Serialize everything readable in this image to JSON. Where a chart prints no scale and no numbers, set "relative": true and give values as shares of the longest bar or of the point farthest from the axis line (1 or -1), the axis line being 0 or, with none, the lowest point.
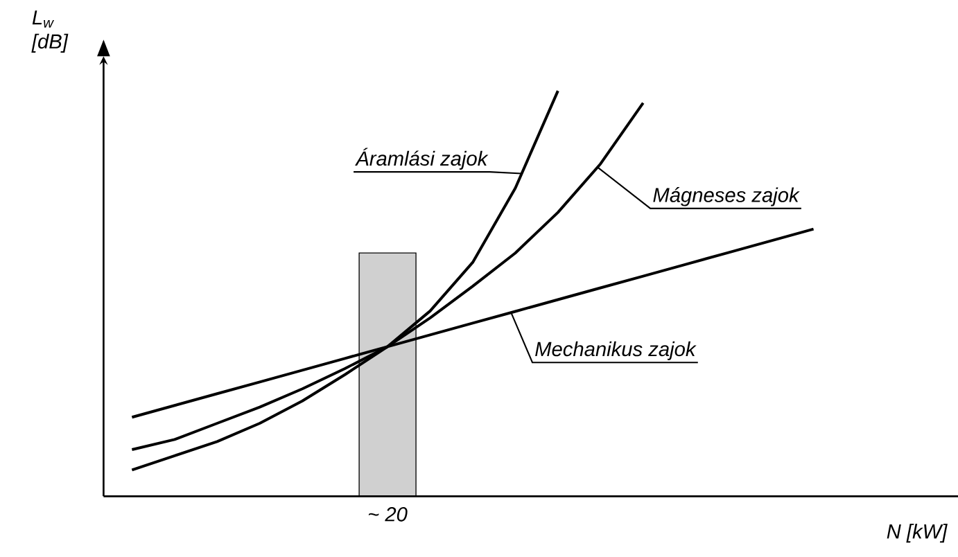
{
  "chart_data": {
    "type": "line",
    "relative": true,
    "xlabel": "N [kW]",
    "ylabel": "L$_{w}$ [dB]",
    "annotations": [
      "~ 20"
    ],
    "line_style": "solid",
    "categories": [
      null,
      null,
      null,
      null,
      null,
      null,
      null,
      null,
      null,
      null,
      null,
      null,
      null,
      null,
      null,
      null,
      null
    ],
    "series": [
      {
        "name": "Áramlási zajok",
        "color": "#000000",
        "values": [
          0.065,
          0.1,
          0.135,
          0.18,
          0.235,
          0.3,
          0.369,
          0.457,
          0.577,
          0.76,
          1.0,
          null,
          null,
          null,
          null,
          null,
          null
        ]
      },
      {
        "name": "Mágneses zajok",
        "color": "#000000",
        "values": [
          0.115,
          0.14,
          0.18,
          0.22,
          0.265,
          0.315,
          0.369,
          0.44,
          0.518,
          0.6,
          0.7,
          0.82,
          0.97,
          null,
          null,
          null,
          null
        ]
      },
      {
        "name": "Mechanikus zajok",
        "color": "#000000",
        "values": [
          0.195,
          0.224,
          0.253,
          0.282,
          0.311,
          0.34,
          0.369,
          0.398,
          0.427,
          0.456,
          0.485,
          0.514,
          0.543,
          0.572,
          0.601,
          0.63,
          0.659
        ]
      }
    ]
  }
}
